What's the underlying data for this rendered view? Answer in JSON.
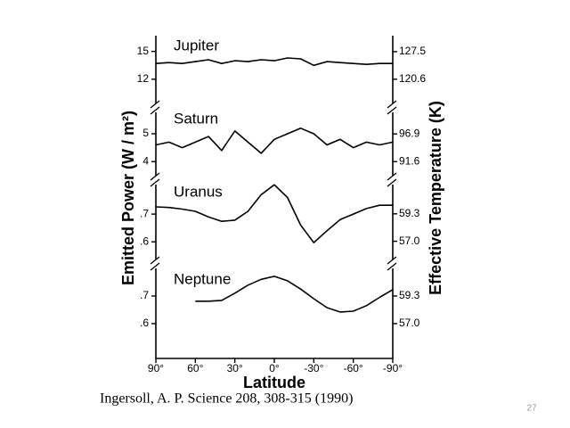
{
  "chart_data": {
    "type": "line",
    "xlabel": "Latitude",
    "ylabel": "Emitted Power  (W / m²)",
    "y2label": "Effective Temperature  (K)",
    "xlim": [
      90,
      -90
    ],
    "xticks": [
      {
        "value": 90,
        "label": "90°"
      },
      {
        "value": 60,
        "label": "60°"
      },
      {
        "value": 30,
        "label": "30°"
      },
      {
        "value": 0,
        "label": "0°"
      },
      {
        "value": -30,
        "label": "-30°"
      },
      {
        "value": -60,
        "label": "-60°"
      },
      {
        "value": -90,
        "label": "-90°"
      }
    ],
    "color": "#000000",
    "panels": [
      {
        "title": "Jupiter",
        "ylim": [
          9.2,
          16.7
        ],
        "yticks": [
          15,
          12
        ],
        "y2lim": [
          114.1,
          131.5
        ],
        "y2ticks": [
          127.5,
          120.6
        ],
        "x": [
          90,
          80,
          70,
          60,
          50,
          40,
          30,
          20,
          10,
          0,
          -10,
          -20,
          -30,
          -40,
          -50,
          -60,
          -70,
          -80,
          -90
        ],
        "values": [
          13.7,
          13.8,
          13.7,
          13.9,
          14.1,
          13.7,
          14.0,
          13.9,
          14.1,
          14.0,
          14.3,
          14.2,
          13.5,
          13.9,
          13.8,
          13.7,
          13.6,
          13.7,
          13.7
        ]
      },
      {
        "title": "Saturn",
        "ylim": [
          3.4,
          5.8
        ],
        "yticks": [
          5,
          4
        ],
        "y2lim": [
          88.4,
          101.2
        ],
        "y2ticks": [
          96.9,
          91.6
        ],
        "x": [
          90,
          80,
          70,
          60,
          50,
          40,
          30,
          20,
          10,
          0,
          -10,
          -20,
          -30,
          -40,
          -50,
          -60,
          -70,
          -80,
          -90
        ],
        "values": [
          4.6,
          4.7,
          4.5,
          4.7,
          4.9,
          4.4,
          5.1,
          4.7,
          4.3,
          4.8,
          5.0,
          5.2,
          5.0,
          4.6,
          4.8,
          4.5,
          4.7,
          4.6,
          4.7
        ]
      },
      {
        "title": "Uranus",
        "ylim": [
          0.533,
          0.813
        ],
        "yticks": [
          {
            "value": 0.7,
            "label": ".7"
          },
          {
            "value": 0.6,
            "label": ".6"
          }
        ],
        "y2lim": [
          55.4,
          61.9
        ],
        "y2ticks": [
          59.3,
          {
            "value": 57,
            "label": "57.0"
          }
        ],
        "x": [
          90,
          80,
          70,
          60,
          50,
          40,
          30,
          20,
          10,
          0,
          -10,
          -20,
          -30,
          -40,
          -50,
          -60,
          -70,
          -80,
          -90
        ],
        "values": [
          0.726,
          0.724,
          0.718,
          0.71,
          0.69,
          0.674,
          0.678,
          0.71,
          0.77,
          0.806,
          0.76,
          0.66,
          0.597,
          0.64,
          0.68,
          0.7,
          0.72,
          0.732,
          0.732
        ]
      },
      {
        "title": "Neptune",
        "ylim": [
          0.474,
          0.803
        ],
        "yticks": [
          {
            "value": 0.7,
            "label": ".7"
          },
          {
            "value": 0.6,
            "label": ".6"
          }
        ],
        "y2lim": [
          54.1,
          61.67
        ],
        "y2ticks": [
          59.3,
          {
            "value": 57,
            "label": "57.0"
          }
        ],
        "x": [
          90,
          80,
          70,
          60,
          50,
          40,
          30,
          20,
          10,
          0,
          -10,
          -20,
          -30,
          -40,
          -50,
          -60,
          -70,
          -80,
          -90
        ],
        "values": [
          null,
          null,
          null,
          0.681,
          0.681,
          0.684,
          0.71,
          0.739,
          0.76,
          0.771,
          0.755,
          0.725,
          0.69,
          0.658,
          0.642,
          0.645,
          0.665,
          0.695,
          0.723
        ]
      }
    ]
  },
  "caption": "Ingersoll, A. P. Science 208, 308-315 (1990)",
  "page_number": "27"
}
